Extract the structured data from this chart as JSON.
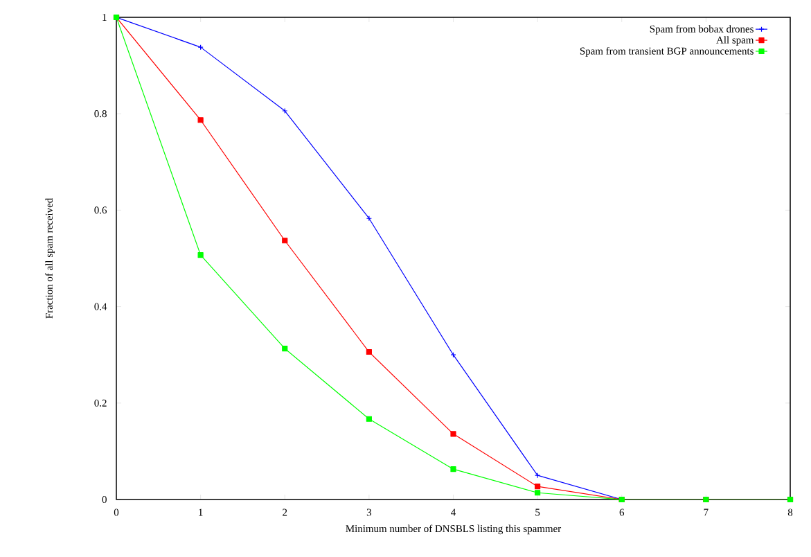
{
  "chart_data": {
    "type": "line",
    "xlabel": "Minimum number of DNSBLS listing this spammer",
    "ylabel": "Fraction of all spam received",
    "x": [
      0,
      1,
      2,
      3,
      4,
      5,
      6,
      7,
      8
    ],
    "xlim": [
      0,
      8
    ],
    "xticks": [
      0,
      1,
      2,
      3,
      4,
      5,
      6,
      7,
      8
    ],
    "ylim": [
      0,
      1
    ],
    "yticks": [
      0,
      0.2,
      0.4,
      0.6,
      0.8,
      1
    ],
    "legend": "top right",
    "series": [
      {
        "name": "Spam from bobax drones",
        "color": "#0000ff",
        "marker": "cross",
        "values": [
          1,
          0.938,
          0.806,
          0.583,
          0.3,
          0.05,
          0,
          0,
          0
        ]
      },
      {
        "name": "All spam",
        "color": "#ff0000",
        "marker": "square",
        "values": [
          1,
          0.787,
          0.537,
          0.306,
          0.136,
          0.027,
          0,
          0,
          0
        ]
      },
      {
        "name": "Spam from transient BGP announcements",
        "color": "#00ff00",
        "marker": "square",
        "values": [
          1,
          0.507,
          0.313,
          0.167,
          0.063,
          0.014,
          0,
          0,
          0
        ]
      }
    ]
  }
}
